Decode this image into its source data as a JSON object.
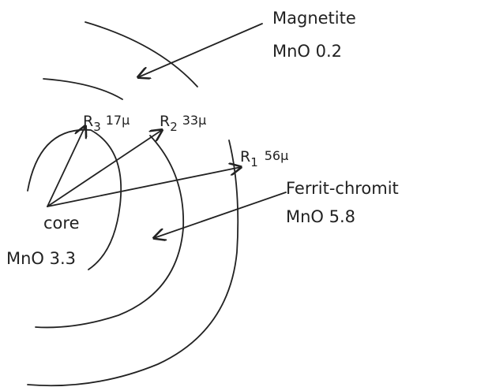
{
  "labels": {
    "magnetite": {
      "name": "Magnetite",
      "composition": "MnO 0.2"
    },
    "ferrit": {
      "name": "Ferrit-chromit",
      "composition": "MnO 5.8"
    },
    "core": {
      "name": "core",
      "composition": "MnO 3.3"
    },
    "radii": [
      {
        "symbol": "R",
        "index": "3",
        "size": "17μ"
      },
      {
        "symbol": "R",
        "index": "2",
        "size": "33μ"
      },
      {
        "symbol": "R",
        "index": "1",
        "size": "56μ"
      }
    ]
  }
}
